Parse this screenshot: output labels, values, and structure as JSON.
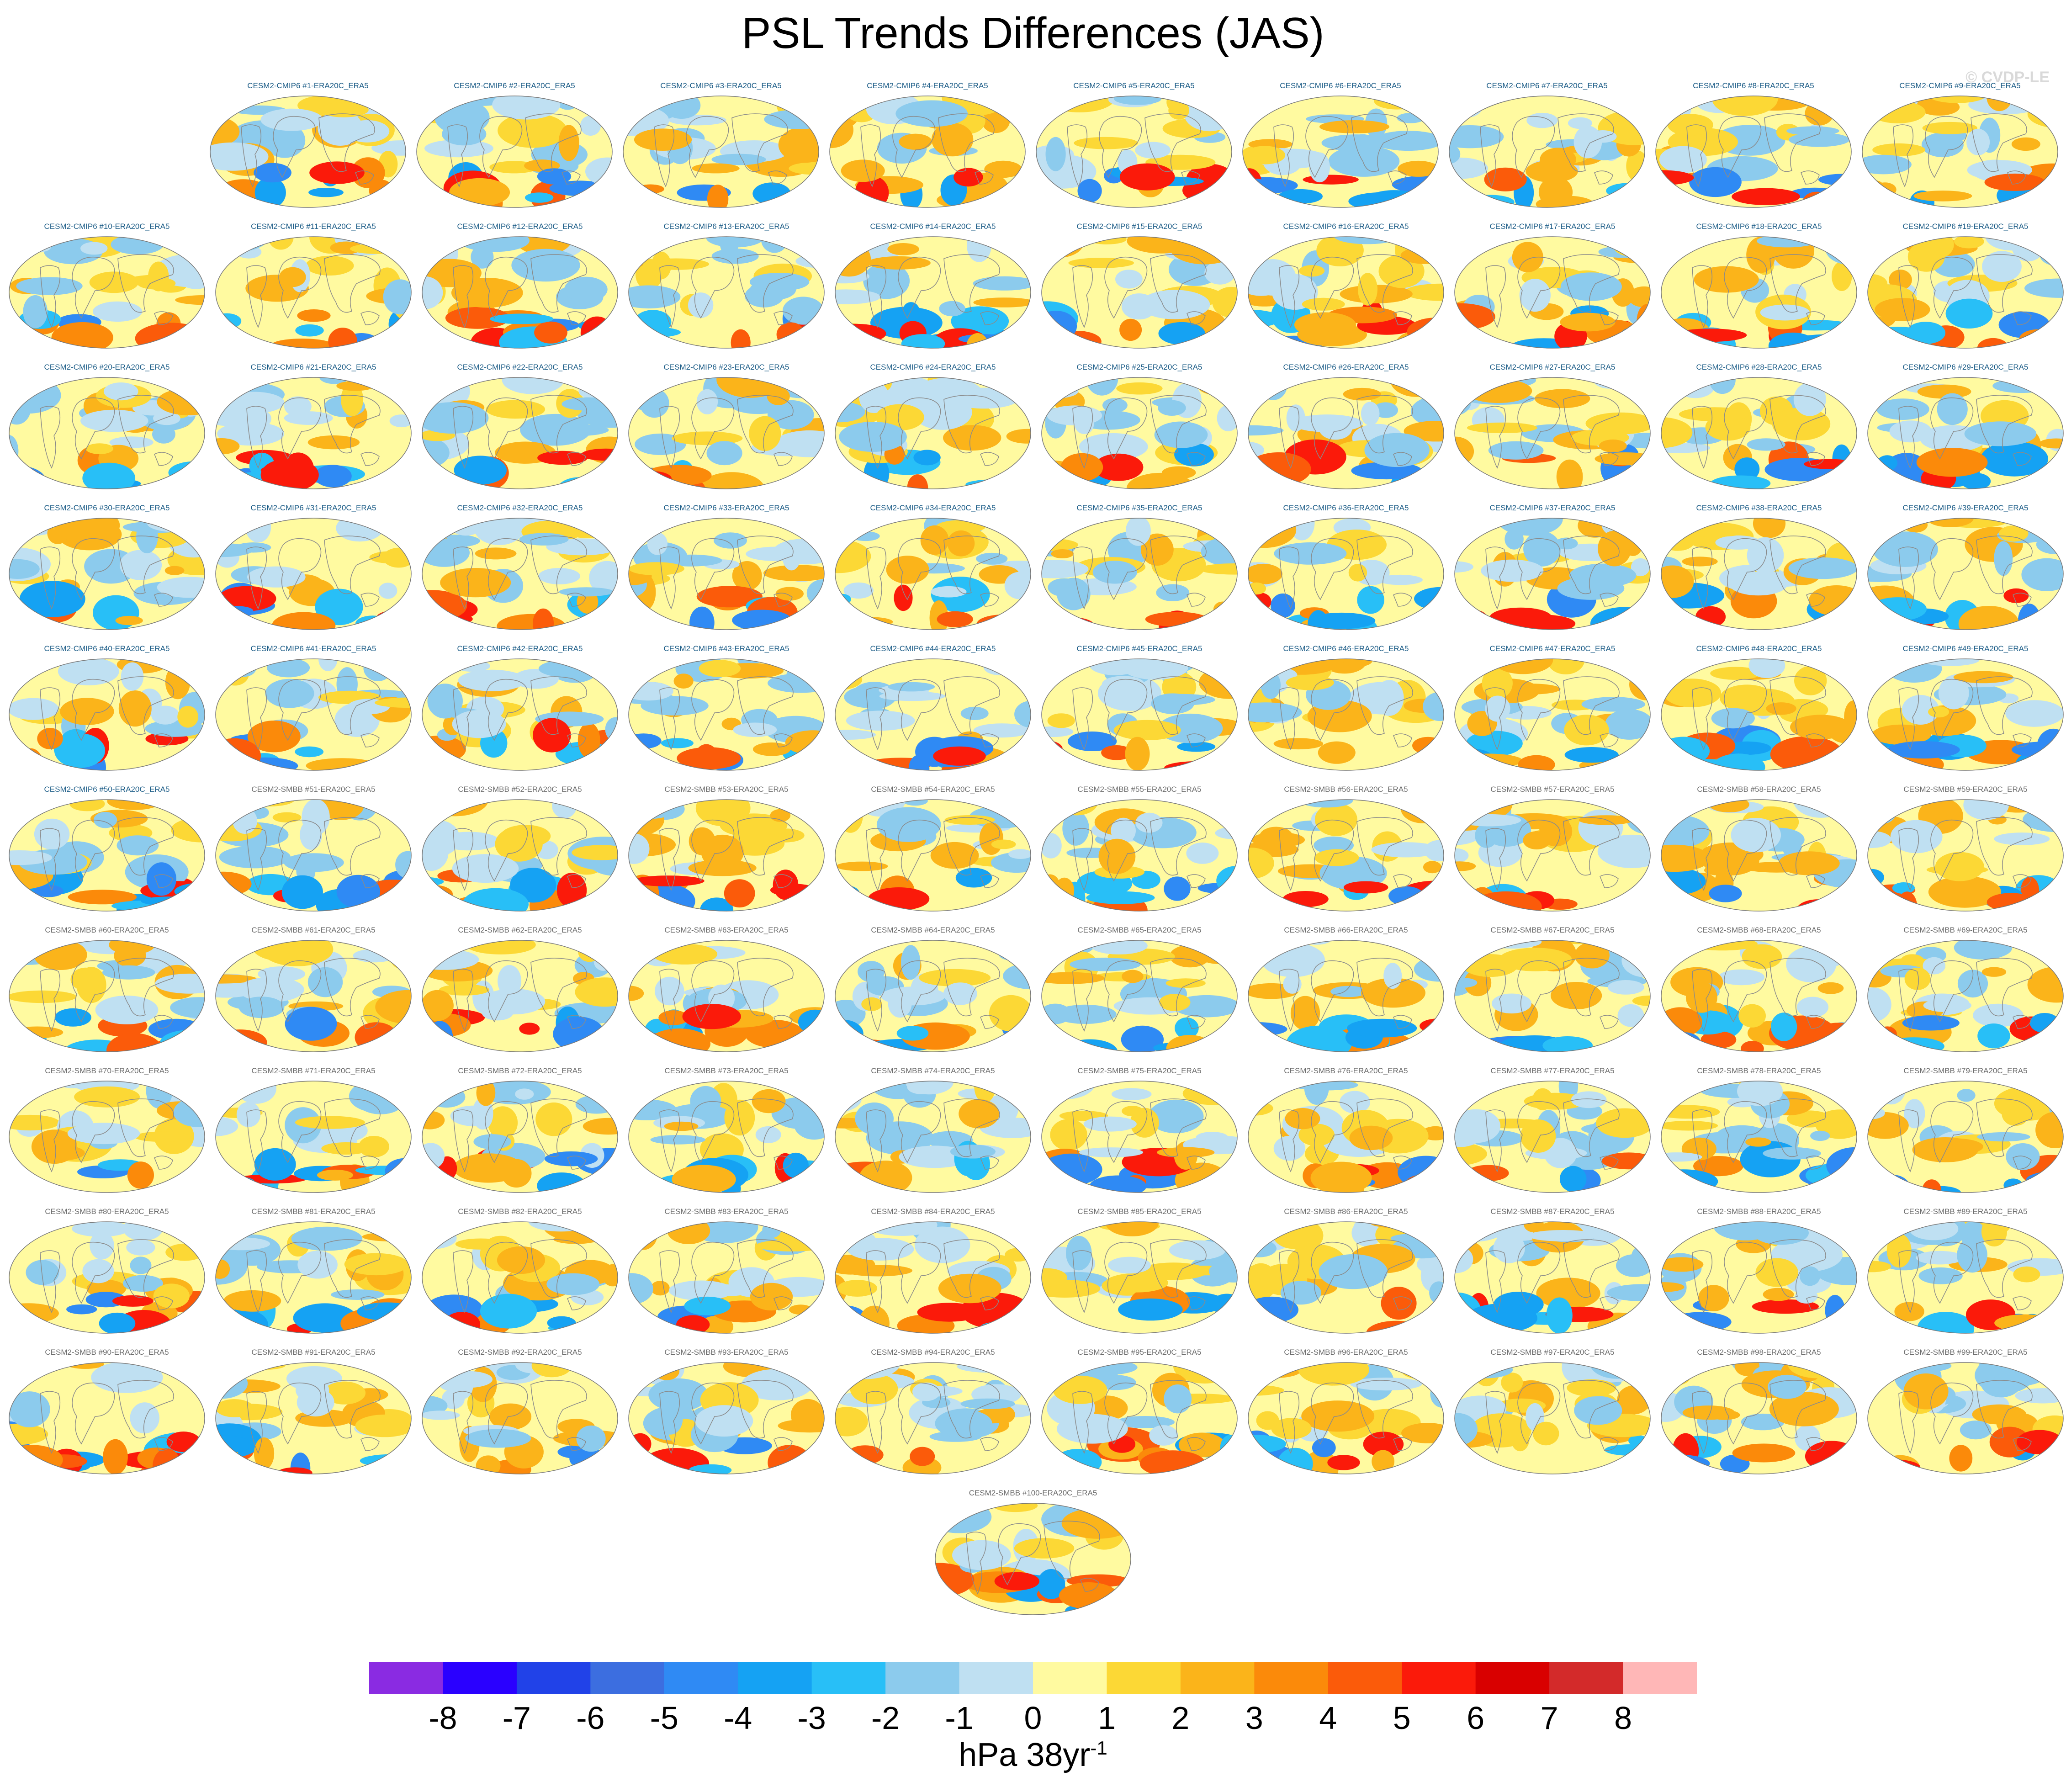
{
  "title": "PSL Trends Differences (JAS)",
  "watermark": "© CVDP-LE",
  "panel_template_cmip": "CESM2-CMIP6 #{n}-ERA20C_ERA5",
  "panel_template_smbb": "CESM2-SMBB #{n}-ERA20C_ERA5",
  "panel_count": 100,
  "cmip_count": 50,
  "chart_data": {
    "type": "heatmap",
    "title": "PSL Trends Differences (JAS)",
    "panels_description": "100 global map panels (robinson projection), CESM2-CMIP6 #1-#50 and CESM2-SMBB #51-#100, each minus ERA20C_ERA5",
    "colorbar": {
      "ticks": [
        "-8",
        "-7",
        "-6",
        "-5",
        "-4",
        "-3",
        "-2",
        "-1",
        "0",
        "1",
        "2",
        "3",
        "4",
        "5",
        "6",
        "7",
        "8"
      ],
      "range": [
        -8,
        8
      ],
      "colors": [
        "#8a2be2",
        "#2a00ff",
        "#2142e8",
        "#3c6ee0",
        "#2f8af4",
        "#15a2f3",
        "#28bff7",
        "#8ccbed",
        "#bfe0f2",
        "#fffaa0",
        "#fcd835",
        "#fbb41a",
        "#fb8a0a",
        "#fb5b0a",
        "#fb1a0a",
        "#d90000",
        "#d32a2a",
        "#ffb7b7"
      ],
      "units": "hPa 38yr",
      "units_superscript": "-1"
    },
    "map_colors": {
      "land_outline": "#8a8a8a",
      "near_zero_positive": "#fffaa0",
      "near_zero_negative": "#bfe0f2"
    }
  }
}
